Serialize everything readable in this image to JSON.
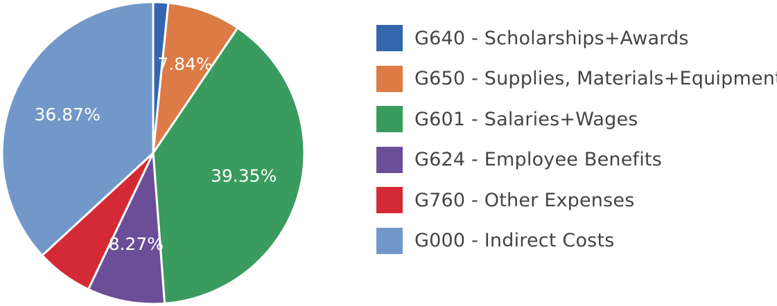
{
  "chart_data": {
    "type": "pie",
    "title": "",
    "start_angle_deg": 0,
    "direction": "clockwise",
    "legend_position": "right",
    "slices": [
      {
        "name": "G640 - Scholarships+Awards",
        "value": 1.6,
        "color": "#3466ad",
        "label": ""
      },
      {
        "name": "G650 - Supplies, Materials+Equipment",
        "value": 7.84,
        "color": "#dc7b45",
        "label": "7.84%"
      },
      {
        "name": "G601 - Salaries+Wages",
        "value": 39.35,
        "color": "#3a9b5e",
        "label": "39.35%"
      },
      {
        "name": "G624 - Employee Benefits",
        "value": 8.27,
        "color": "#6b4e97",
        "label": "8.27%"
      },
      {
        "name": "G760 - Other Expenses",
        "value": 6.07,
        "color": "#d42a35",
        "label": ""
      },
      {
        "name": "G000 - Indirect Costs",
        "value": 36.87,
        "color": "#7298c9",
        "label": "36.87%"
      }
    ]
  }
}
